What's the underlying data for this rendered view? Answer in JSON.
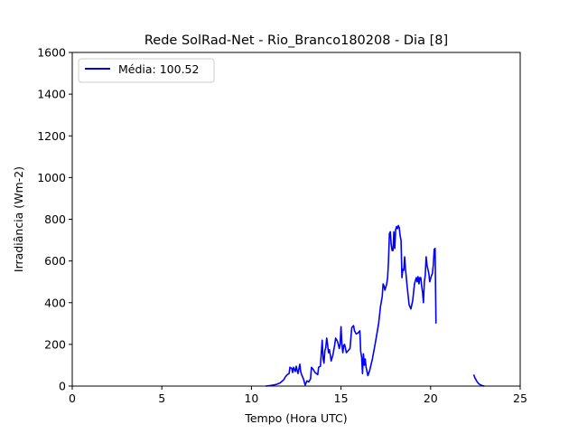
{
  "chart_data": {
    "type": "line",
    "title": "Rede SolRad-Net - Rio_Branco180208 - Dia [8]",
    "xlabel": "Tempo (Hora UTC)",
    "ylabel": "Irradiância (Wm-2)",
    "xlim": [
      0,
      25
    ],
    "ylim": [
      0,
      1600
    ],
    "xticks": [
      0,
      5,
      10,
      15,
      20,
      25
    ],
    "yticks": [
      0,
      200,
      400,
      600,
      800,
      1000,
      1200,
      1400,
      1600
    ],
    "grid": false,
    "legend_position": "upper-left",
    "series": [
      {
        "name": "Média: 100.52",
        "color": "#0000ff",
        "segments": [
          [
            [
              10.8,
              0
            ],
            [
              11.1,
              3
            ],
            [
              11.4,
              8
            ],
            [
              11.6,
              15
            ],
            [
              11.8,
              30
            ],
            [
              11.9,
              45
            ],
            [
              12.0,
              55
            ],
            [
              12.1,
              60
            ],
            [
              12.15,
              90
            ],
            [
              12.25,
              85
            ],
            [
              12.3,
              65
            ],
            [
              12.35,
              90
            ],
            [
              12.45,
              70
            ],
            [
              12.5,
              95
            ],
            [
              12.55,
              75
            ],
            [
              12.6,
              60
            ],
            [
              12.7,
              105
            ],
            [
              12.75,
              70
            ],
            [
              12.8,
              55
            ],
            [
              12.9,
              35
            ],
            [
              13.0,
              5
            ],
            [
              13.1,
              25
            ],
            [
              13.2,
              20
            ],
            [
              13.3,
              35
            ],
            [
              13.35,
              90
            ],
            [
              13.45,
              80
            ],
            [
              13.55,
              65
            ],
            [
              13.7,
              55
            ],
            [
              13.75,
              90
            ],
            [
              13.85,
              95
            ],
            [
              13.9,
              160
            ],
            [
              13.95,
              220
            ],
            [
              14.0,
              130
            ],
            [
              14.05,
              110
            ],
            [
              14.1,
              170
            ],
            [
              14.15,
              185
            ],
            [
              14.2,
              230
            ],
            [
              14.25,
              200
            ],
            [
              14.3,
              160
            ],
            [
              14.35,
              175
            ],
            [
              14.4,
              150
            ],
            [
              14.45,
              120
            ],
            [
              14.55,
              150
            ],
            [
              14.65,
              200
            ],
            [
              14.7,
              230
            ],
            [
              14.8,
              215
            ],
            [
              14.85,
              200
            ],
            [
              14.9,
              180
            ],
            [
              14.95,
              200
            ],
            [
              15.0,
              285
            ],
            [
              15.05,
              200
            ],
            [
              15.1,
              160
            ],
            [
              15.15,
              195
            ],
            [
              15.2,
              200
            ],
            [
              15.3,
              160
            ],
            [
              15.4,
              170
            ],
            [
              15.5,
              180
            ],
            [
              15.6,
              280
            ],
            [
              15.7,
              290
            ],
            [
              15.75,
              265
            ],
            [
              15.85,
              250
            ],
            [
              15.95,
              255
            ],
            [
              16.05,
              265
            ],
            [
              16.1,
              165
            ],
            [
              16.15,
              140
            ],
            [
              16.2,
              60
            ],
            [
              16.25,
              155
            ],
            [
              16.3,
              100
            ],
            [
              16.35,
              130
            ],
            [
              16.4,
              90
            ],
            [
              16.5,
              50
            ],
            [
              16.6,
              75
            ],
            [
              16.75,
              130
            ],
            [
              16.9,
              200
            ],
            [
              17.1,
              300
            ],
            [
              17.2,
              380
            ],
            [
              17.3,
              430
            ],
            [
              17.35,
              490
            ],
            [
              17.4,
              480
            ],
            [
              17.45,
              460
            ],
            [
              17.55,
              490
            ],
            [
              17.6,
              520
            ],
            [
              17.65,
              600
            ],
            [
              17.7,
              730
            ],
            [
              17.75,
              740
            ],
            [
              17.8,
              680
            ],
            [
              17.85,
              650
            ],
            [
              17.9,
              650
            ],
            [
              17.95,
              740
            ],
            [
              18.0,
              660
            ],
            [
              18.05,
              750
            ],
            [
              18.1,
              765
            ],
            [
              18.15,
              755
            ],
            [
              18.2,
              770
            ],
            [
              18.25,
              760
            ],
            [
              18.3,
              720
            ],
            [
              18.35,
              700
            ],
            [
              18.4,
              520
            ],
            [
              18.45,
              560
            ],
            [
              18.5,
              555
            ],
            [
              18.55,
              620
            ],
            [
              18.6,
              560
            ],
            [
              18.7,
              470
            ],
            [
              18.8,
              390
            ],
            [
              18.9,
              370
            ],
            [
              19.0,
              410
            ],
            [
              19.1,
              490
            ],
            [
              19.2,
              520
            ],
            [
              19.25,
              500
            ],
            [
              19.3,
              525
            ],
            [
              19.35,
              490
            ],
            [
              19.4,
              520
            ],
            [
              19.45,
              520
            ],
            [
              19.5,
              480
            ],
            [
              19.55,
              450
            ],
            [
              19.6,
              400
            ],
            [
              19.65,
              500
            ],
            [
              19.7,
              530
            ],
            [
              19.75,
              620
            ],
            [
              19.8,
              580
            ],
            [
              19.85,
              560
            ],
            [
              19.9,
              540
            ],
            [
              19.95,
              500
            ],
            [
              20.05,
              530
            ],
            [
              20.1,
              540
            ],
            [
              20.15,
              580
            ],
            [
              20.2,
              655
            ],
            [
              20.25,
              660
            ],
            [
              20.3,
              300
            ]
          ],
          [
            [
              22.4,
              55
            ],
            [
              22.5,
              35
            ],
            [
              22.6,
              20
            ],
            [
              22.7,
              10
            ],
            [
              22.8,
              5
            ],
            [
              22.9,
              2
            ],
            [
              23.0,
              0
            ]
          ]
        ]
      }
    ]
  }
}
